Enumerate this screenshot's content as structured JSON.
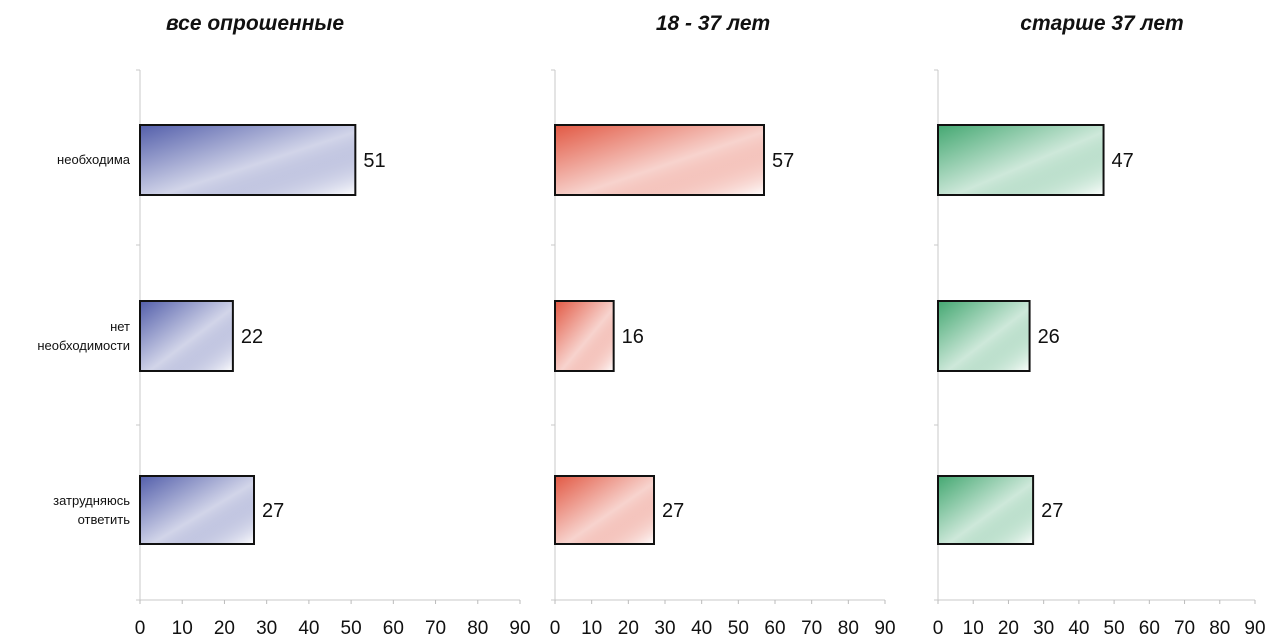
{
  "chart_data": [
    {
      "type": "bar",
      "orientation": "horizontal",
      "title": "все опрошенные",
      "categories": [
        "необходима",
        "нет необходимости",
        "затрудняюсь ответить"
      ],
      "values": [
        51,
        22,
        27
      ],
      "xlim": [
        0,
        90
      ],
      "ticks": [
        0,
        10,
        20,
        30,
        40,
        50,
        60,
        70,
        80,
        90
      ],
      "color": "#4a56a6",
      "grid": false
    },
    {
      "type": "bar",
      "orientation": "horizontal",
      "title": "18 - 37 лет",
      "categories": [
        "необходима",
        "нет необходимости",
        "затрудняюсь ответить"
      ],
      "values": [
        57,
        16,
        27
      ],
      "xlim": [
        0,
        90
      ],
      "ticks": [
        0,
        10,
        20,
        30,
        40,
        50,
        60,
        70,
        80,
        90
      ],
      "color": "#e0503a",
      "grid": false
    },
    {
      "type": "bar",
      "orientation": "horizontal",
      "title": "старше 37 лет",
      "categories": [
        "необходима",
        "нет необходимости",
        "затрудняюсь ответить"
      ],
      "values": [
        47,
        26,
        27
      ],
      "xlim": [
        0,
        90
      ],
      "ticks": [
        0,
        10,
        20,
        30,
        40,
        50,
        60,
        70,
        80,
        90
      ],
      "color": "#3aa36a",
      "grid": false
    }
  ],
  "category_labels": {
    "c0": [
      "необходима"
    ],
    "c1": [
      "нет",
      "необходимости"
    ],
    "c2": [
      "затрудняюсь",
      "ответить"
    ]
  }
}
